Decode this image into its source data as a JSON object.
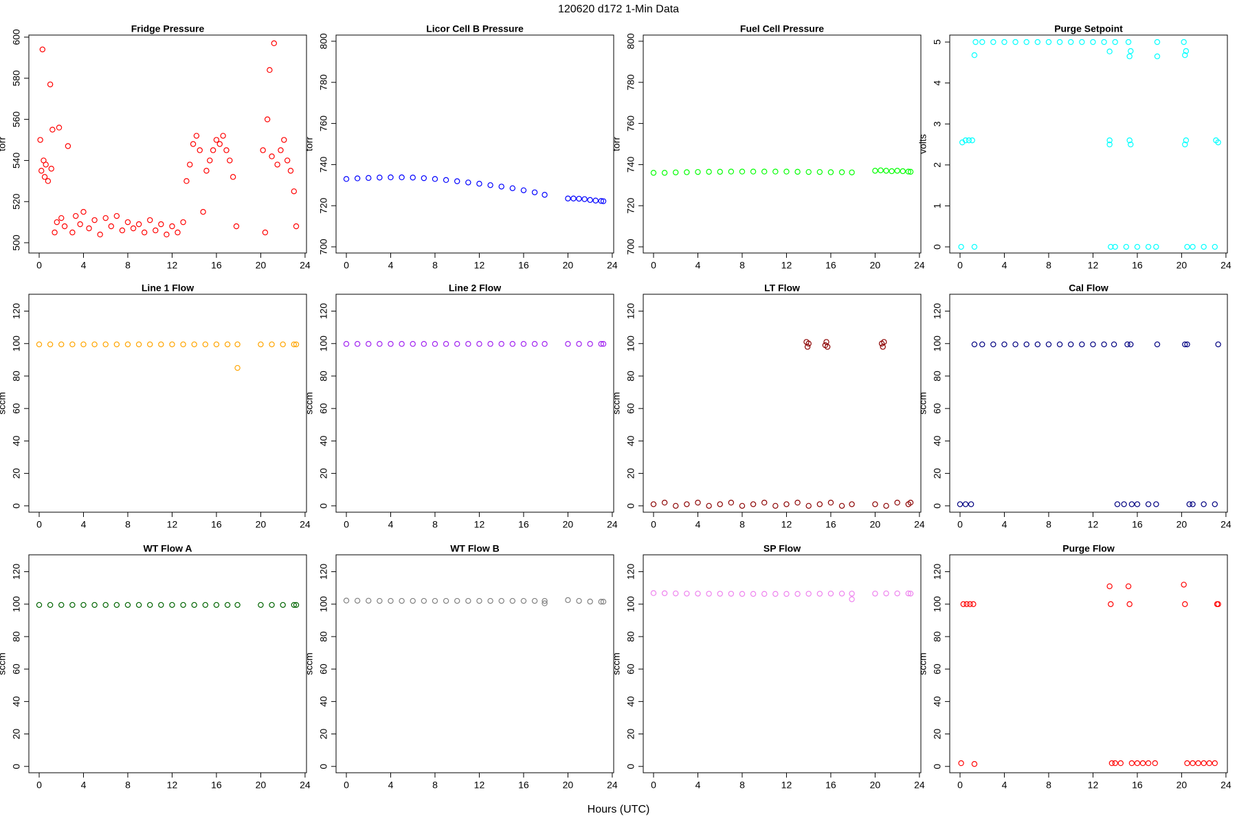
{
  "title": "120620   d172   1-Min Data",
  "x_label": "Hours (UTC)",
  "chart_data": [
    {
      "type": "scatter",
      "title": "Fridge Pressure",
      "y_label": "torr",
      "color": "#ff0000",
      "x": [
        0.1,
        0.2,
        0.3,
        0.4,
        0.5,
        0.6,
        0.8,
        1.0,
        1.1,
        1.2,
        1.4,
        1.6,
        1.8,
        2.0,
        2.3,
        2.6,
        3.0,
        3.3,
        3.7,
        4.0,
        4.5,
        5.0,
        5.5,
        6.0,
        6.5,
        7.0,
        7.5,
        8.0,
        8.5,
        9.0,
        9.5,
        10.0,
        10.5,
        11.0,
        11.5,
        12.0,
        12.5,
        13.0,
        13.3,
        13.6,
        13.9,
        14.2,
        14.5,
        14.8,
        15.1,
        15.4,
        15.7,
        16.0,
        16.3,
        16.6,
        16.9,
        17.2,
        17.5,
        17.8,
        20.2,
        20.4,
        20.6,
        20.8,
        21.0,
        21.2,
        21.5,
        21.8,
        22.1,
        22.4,
        22.7,
        23.0,
        23.2
      ],
      "values": [
        550,
        535,
        594,
        540,
        532,
        538,
        530,
        577,
        536,
        555,
        505,
        510,
        556,
        512,
        508,
        547,
        505,
        513,
        509,
        515,
        507,
        511,
        504,
        512,
        508,
        513,
        506,
        510,
        507,
        509,
        505,
        511,
        506,
        509,
        504,
        508,
        505,
        510,
        530,
        538,
        548,
        552,
        545,
        515,
        535,
        540,
        545,
        550,
        548,
        552,
        545,
        540,
        532,
        508,
        545,
        505,
        560,
        584,
        542,
        597,
        538,
        545,
        550,
        540,
        535,
        525,
        508
      ],
      "xlim": [
        -0.93,
        24.13
      ],
      "xticks": [
        0,
        4,
        8,
        12,
        16,
        20,
        24
      ],
      "ylim": [
        495,
        601
      ],
      "yticks": [
        500,
        520,
        540,
        560,
        580,
        600
      ]
    },
    {
      "type": "scatter",
      "title": "Licor Cell B Pressure",
      "y_label": "torr",
      "color": "#0000ff",
      "x": [
        0,
        1,
        2,
        3,
        4,
        5,
        6,
        7,
        8,
        9,
        10,
        11,
        12,
        13,
        14,
        15,
        16,
        17,
        17.9,
        20,
        20.5,
        21,
        21.5,
        22,
        22.5,
        23,
        23.2
      ],
      "values": [
        733,
        733.3,
        733.5,
        733.7,
        733.8,
        733.8,
        733.7,
        733.4,
        733,
        732.5,
        731.9,
        731.3,
        730.7,
        730,
        729.3,
        728.5,
        727.5,
        726.5,
        725.3,
        723.5,
        723.5,
        723.4,
        723.2,
        722.8,
        722.5,
        722.3,
        722.2
      ],
      "xlim": [
        -0.93,
        24.13
      ],
      "xticks": [
        0,
        4,
        8,
        12,
        16,
        20,
        24
      ],
      "ylim": [
        697,
        803
      ],
      "yticks": [
        700,
        720,
        740,
        760,
        780,
        800
      ]
    },
    {
      "type": "scatter",
      "title": "Fuel Cell Pressure",
      "y_label": "torr",
      "color": "#00ff00",
      "x": [
        0,
        1,
        2,
        3,
        4,
        5,
        6,
        7,
        8,
        9,
        10,
        11,
        12,
        13,
        14,
        15,
        16,
        17,
        17.9,
        20,
        20.5,
        21,
        21.5,
        22,
        22.5,
        23,
        23.2
      ],
      "values": [
        736,
        736,
        736.2,
        736.3,
        736.4,
        736.5,
        736.5,
        736.6,
        736.6,
        736.6,
        736.6,
        736.6,
        736.6,
        736.5,
        736.4,
        736.4,
        736.3,
        736.3,
        736.2,
        737,
        737.2,
        737,
        736.8,
        737,
        736.8,
        736.6,
        736.5
      ],
      "xlim": [
        -0.93,
        24.13
      ],
      "xticks": [
        0,
        4,
        8,
        12,
        16,
        20,
        24
      ],
      "ylim": [
        697,
        803
      ],
      "yticks": [
        700,
        720,
        740,
        760,
        780,
        800
      ]
    },
    {
      "type": "scatter",
      "title": "Purge Setpoint",
      "y_label": "volts",
      "color": "#00ffff",
      "x": [
        0.1,
        0.2,
        0.5,
        0.8,
        1.1,
        1.3,
        1.3,
        1.4,
        2,
        3,
        4,
        5,
        6,
        7,
        8,
        9,
        10,
        11,
        12,
        13,
        13.5,
        13.5,
        13.5,
        13.6,
        14,
        14,
        15,
        15.2,
        15.3,
        15.4,
        15.3,
        15.4,
        16,
        17,
        17.7,
        17.8,
        17.8,
        20.2,
        20.3,
        20.4,
        20.3,
        20.4,
        20.5,
        21,
        22,
        23,
        23.1,
        23.3
      ],
      "values": [
        0,
        2.55,
        2.6,
        2.6,
        2.6,
        0,
        4.68,
        5,
        5,
        5,
        5,
        5,
        5,
        5,
        5,
        5,
        5,
        5,
        5,
        5,
        4.77,
        2.6,
        2.5,
        0,
        0,
        5,
        0,
        5,
        4.65,
        4.78,
        2.6,
        2.5,
        0,
        0,
        0,
        5,
        4.65,
        5,
        4.68,
        4.78,
        2.5,
        2.6,
        0,
        0,
        0,
        0,
        2.6,
        2.55
      ],
      "xlim": [
        -0.93,
        24.13
      ],
      "xticks": [
        0,
        4,
        8,
        12,
        16,
        20,
        24
      ],
      "ylim": [
        -0.15,
        5.17
      ],
      "yticks": [
        0,
        1,
        2,
        3,
        4,
        5
      ]
    },
    {
      "type": "scatter",
      "title": "Line 1 Flow",
      "y_label": "sccm",
      "color": "#ffa500",
      "x": [
        0,
        1,
        2,
        3,
        4,
        5,
        6,
        7,
        8,
        9,
        10,
        11,
        12,
        13,
        14,
        15,
        16,
        17,
        17.9,
        17.9,
        20,
        21,
        22,
        23,
        23.2
      ],
      "values": [
        99.5,
        99.5,
        99.5,
        99.5,
        99.5,
        99.5,
        99.5,
        99.5,
        99.5,
        99.5,
        99.5,
        99.5,
        99.5,
        99.5,
        99.5,
        99.5,
        99.5,
        99.5,
        99.5,
        85,
        99.5,
        99.5,
        99.5,
        99.5,
        99.5
      ],
      "xlim": [
        -0.93,
        24.13
      ],
      "xticks": [
        0,
        4,
        8,
        12,
        16,
        20,
        24
      ],
      "ylim": [
        -3.9,
        130.4
      ],
      "yticks": [
        0,
        20,
        40,
        60,
        80,
        100,
        120
      ]
    },
    {
      "type": "scatter",
      "title": "Line 2 Flow",
      "y_label": "sccm",
      "color": "#a020f0",
      "x": [
        0,
        1,
        2,
        3,
        4,
        5,
        6,
        7,
        8,
        9,
        10,
        11,
        12,
        13,
        14,
        15,
        16,
        17,
        17.9,
        20,
        21,
        22,
        23,
        23.2
      ],
      "values": [
        99.8,
        99.8,
        99.8,
        99.8,
        99.8,
        99.8,
        99.8,
        99.8,
        99.8,
        99.8,
        99.8,
        99.8,
        99.8,
        99.8,
        99.8,
        99.8,
        99.8,
        99.8,
        99.8,
        99.8,
        99.8,
        99.8,
        99.8,
        99.8
      ],
      "xlim": [
        -0.93,
        24.13
      ],
      "xticks": [
        0,
        4,
        8,
        12,
        16,
        20,
        24
      ],
      "ylim": [
        -3.9,
        130.4
      ],
      "yticks": [
        0,
        20,
        40,
        60,
        80,
        100,
        120
      ]
    },
    {
      "type": "scatter",
      "title": "LT Flow",
      "y_label": "sccm",
      "color": "#8b0000",
      "x": [
        0,
        1,
        2,
        3,
        4,
        5,
        6,
        7,
        8,
        9,
        10,
        11,
        12,
        13,
        14,
        15,
        16,
        17,
        17.9,
        20,
        21,
        22,
        23,
        23.2,
        13.8,
        13.9,
        14.0,
        15.5,
        15.6,
        15.7,
        20.6,
        20.7,
        20.8
      ],
      "values": [
        1,
        2,
        0,
        1,
        2,
        0,
        1,
        2,
        0,
        1,
        2,
        0,
        1,
        2,
        0,
        1,
        2,
        0,
        1,
        1,
        0,
        2,
        1,
        2,
        101,
        98,
        100,
        99,
        101,
        98,
        100,
        98,
        101
      ],
      "xlim": [
        -0.93,
        24.13
      ],
      "xticks": [
        0,
        4,
        8,
        12,
        16,
        20,
        24
      ],
      "ylim": [
        -3.9,
        130.4
      ],
      "yticks": [
        0,
        20,
        40,
        60,
        80,
        100,
        120
      ]
    },
    {
      "type": "scatter",
      "title": "Cal Flow",
      "y_label": "sccm",
      "color": "#000080",
      "x": [
        0,
        0.5,
        1,
        1.3,
        2,
        3,
        4,
        5,
        6,
        7,
        8,
        9,
        10,
        11,
        12,
        13,
        13.9,
        14.2,
        14.8,
        15.1,
        15.4,
        15.5,
        16,
        17,
        17.7,
        17.8,
        20.3,
        20.5,
        20.7,
        21,
        22,
        23,
        23.3
      ],
      "values": [
        1,
        1,
        1,
        99.5,
        99.5,
        99.5,
        99.5,
        99.5,
        99.5,
        99.5,
        99.5,
        99.5,
        99.5,
        99.5,
        99.5,
        99.5,
        99.5,
        1,
        1,
        99.5,
        99.5,
        1,
        1,
        1,
        1,
        99.5,
        99.5,
        99.5,
        1,
        1,
        1,
        1,
        99.5
      ],
      "xlim": [
        -0.93,
        24.13
      ],
      "xticks": [
        0,
        4,
        8,
        12,
        16,
        20,
        24
      ],
      "ylim": [
        -3.9,
        130.4
      ],
      "yticks": [
        0,
        20,
        40,
        60,
        80,
        100,
        120
      ]
    },
    {
      "type": "scatter",
      "title": "WT Flow A",
      "y_label": "sccm",
      "color": "#006400",
      "x": [
        0,
        1,
        2,
        3,
        4,
        5,
        6,
        7,
        8,
        9,
        10,
        11,
        12,
        13,
        14,
        15,
        16,
        17,
        17.9,
        20,
        21,
        22,
        23,
        23.2
      ],
      "values": [
        99.5,
        99.5,
        99.5,
        99.5,
        99.5,
        99.5,
        99.5,
        99.5,
        99.5,
        99.5,
        99.5,
        99.5,
        99.5,
        99.5,
        99.5,
        99.5,
        99.5,
        99.5,
        99.5,
        99.5,
        99.5,
        99.5,
        99.5,
        99.5
      ],
      "xlim": [
        -0.93,
        24.13
      ],
      "xticks": [
        0,
        4,
        8,
        12,
        16,
        20,
        24
      ],
      "ylim": [
        -3.9,
        130.4
      ],
      "yticks": [
        0,
        20,
        40,
        60,
        80,
        100,
        120
      ]
    },
    {
      "type": "scatter",
      "title": "WT Flow B",
      "y_label": "sccm",
      "color": "#808080",
      "x": [
        0,
        1,
        2,
        3,
        4,
        5,
        6,
        7,
        8,
        9,
        10,
        11,
        12,
        13,
        14,
        15,
        16,
        17,
        17.9,
        17.9,
        20,
        21,
        22,
        23,
        23.2
      ],
      "values": [
        102.2,
        102.1,
        102.1,
        102,
        102,
        102,
        102,
        102,
        102,
        102,
        102,
        102,
        102,
        102,
        102,
        102,
        102,
        102,
        102,
        100.5,
        102.5,
        102,
        101.6,
        101.5,
        101.5
      ],
      "xlim": [
        -0.93,
        24.13
      ],
      "xticks": [
        0,
        4,
        8,
        12,
        16,
        20,
        24
      ],
      "ylim": [
        -3.9,
        130.4
      ],
      "yticks": [
        0,
        20,
        40,
        60,
        80,
        100,
        120
      ]
    },
    {
      "type": "scatter",
      "title": "SP Flow",
      "y_label": "sccm",
      "color": "#ee82ee",
      "x": [
        0,
        1,
        2,
        3,
        4,
        5,
        6,
        7,
        8,
        9,
        10,
        11,
        12,
        13,
        14,
        15,
        16,
        17,
        17.9,
        17.9,
        20,
        21,
        22,
        23,
        23.2
      ],
      "values": [
        106.8,
        106.7,
        106.6,
        106.5,
        106.5,
        106.4,
        106.4,
        106.4,
        106.3,
        106.3,
        106.3,
        106.3,
        106.3,
        106.3,
        106.4,
        106.4,
        106.5,
        106.5,
        106.5,
        103,
        106.5,
        106.6,
        106.6,
        106.6,
        106.5
      ],
      "xlim": [
        -0.93,
        24.13
      ],
      "xticks": [
        0,
        4,
        8,
        12,
        16,
        20,
        24
      ],
      "ylim": [
        -3.9,
        130.4
      ],
      "yticks": [
        0,
        20,
        40,
        60,
        80,
        100,
        120
      ]
    },
    {
      "type": "scatter",
      "title": "Purge Flow",
      "y_label": "sccm",
      "color": "#ff0000",
      "x": [
        0.1,
        0.3,
        0.6,
        0.9,
        1.2,
        1.3,
        13.5,
        13.6,
        13.7,
        14,
        14.5,
        15.2,
        15.3,
        15.5,
        16,
        16.5,
        17,
        17.6,
        20.2,
        20.3,
        20.5,
        21,
        21.5,
        22,
        22.5,
        23,
        23.2,
        23.3
      ],
      "values": [
        2,
        100,
        100,
        100,
        100,
        1.5,
        111,
        100,
        2,
        2,
        2,
        111,
        100,
        2,
        2,
        2,
        2,
        2,
        112,
        100,
        2,
        2,
        2,
        2,
        2,
        2,
        100,
        100
      ],
      "xlim": [
        -0.93,
        24.13
      ],
      "xticks": [
        0,
        4,
        8,
        12,
        16,
        20,
        24
      ],
      "ylim": [
        -3.9,
        130.4
      ],
      "yticks": [
        0,
        20,
        40,
        60,
        80,
        100,
        120
      ]
    }
  ]
}
